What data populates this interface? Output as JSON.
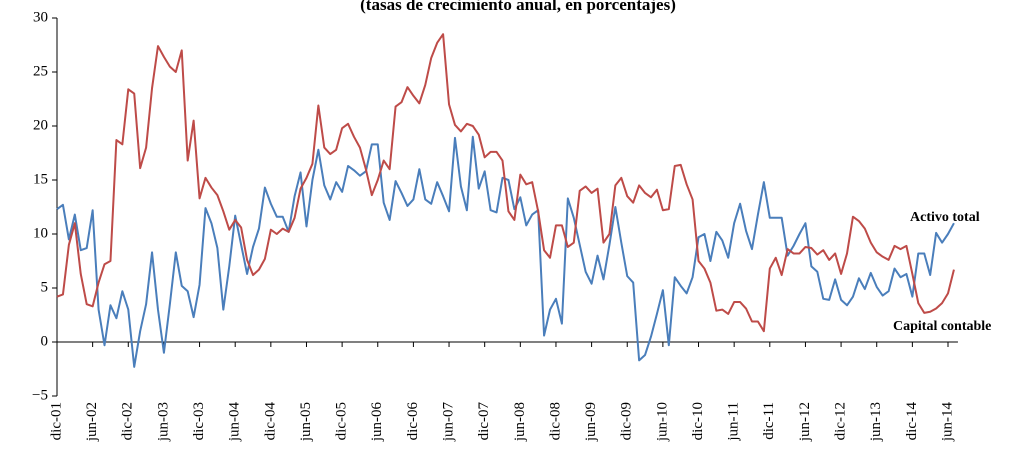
{
  "chart_data": {
    "type": "line",
    "subtitle": "(tasas de crecimiento anual, en porcentajes)",
    "categories": [
      "dic-01",
      null,
      null,
      null,
      null,
      null,
      "jun-02",
      null,
      null,
      null,
      null,
      null,
      "dic-02",
      null,
      null,
      null,
      null,
      null,
      "jun-03",
      null,
      null,
      null,
      null,
      null,
      "dic-03",
      null,
      null,
      null,
      null,
      null,
      "jun-04",
      null,
      null,
      null,
      null,
      null,
      "dic-04",
      null,
      null,
      null,
      null,
      null,
      "jun-05",
      null,
      null,
      null,
      null,
      null,
      "dic-05",
      null,
      null,
      null,
      null,
      null,
      "jun-06",
      null,
      null,
      null,
      null,
      null,
      "dic-06",
      null,
      null,
      null,
      null,
      null,
      "jun-07",
      null,
      null,
      null,
      null,
      null,
      "dic-07",
      null,
      null,
      null,
      null,
      null,
      "jun-08",
      null,
      null,
      null,
      null,
      null,
      "dic-08",
      null,
      null,
      null,
      null,
      null,
      "jun-09",
      null,
      null,
      null,
      null,
      null,
      "dic-09",
      null,
      null,
      null,
      null,
      null,
      "jun-10",
      null,
      null,
      null,
      null,
      null,
      "dic-10",
      null,
      null,
      null,
      null,
      null,
      "jun-11",
      null,
      null,
      null,
      null,
      null,
      "dic-11",
      null,
      null,
      null,
      null,
      null,
      "jun-12",
      null,
      null,
      null,
      null,
      null,
      "dic-12",
      null,
      null,
      null,
      null,
      null,
      "jun-13",
      null,
      null,
      null,
      null,
      null,
      "dic-14",
      null,
      null,
      null,
      null,
      null,
      "jun-14",
      null
    ],
    "series": [
      {
        "name": "Activo total",
        "color": "#4a7ebb",
        "values": [
          12.3,
          12.7,
          9.5,
          11.8,
          8.5,
          8.7,
          12.2,
          3,
          -0.3,
          3.4,
          2.2,
          4.7,
          3,
          -2.3,
          1,
          3.5,
          8.3,
          3,
          -1,
          3.5,
          8.3,
          5.2,
          4.7,
          2.3,
          5.3,
          12.4,
          11,
          8.7,
          3,
          7,
          11.7,
          9,
          6.3,
          8.8,
          10.5,
          14.3,
          12.8,
          11.6,
          11.6,
          10.2,
          13.5,
          15.7,
          10.7,
          15,
          17.8,
          14.5,
          13.2,
          14.8,
          13.9,
          16.3,
          15.9,
          15.4,
          15.8,
          18.3,
          18.3,
          12.9,
          11.3,
          14.9,
          13.8,
          12.6,
          13.2,
          16,
          13.2,
          12.8,
          14.8,
          13.5,
          12.1,
          18.9,
          14.4,
          12.2,
          19,
          14.2,
          15.8,
          12.2,
          12,
          15.2,
          15,
          12.3,
          13.4,
          10.8,
          11.8,
          12.2,
          0.6,
          3,
          4,
          1.7,
          13.3,
          11.5,
          9,
          6.5,
          5.4,
          8,
          5.8,
          9,
          12.5,
          9.2,
          6.1,
          5.5,
          -1.7,
          -1.2,
          0.5,
          2.6,
          4.8,
          -0.3,
          6,
          5.2,
          4.5,
          6,
          9.7,
          10,
          7.5,
          10.2,
          9.4,
          7.8,
          11,
          12.8,
          10.3,
          8.6,
          11.8,
          14.8,
          11.5,
          11.5,
          11.5,
          8,
          8.9,
          10,
          11,
          7,
          6.5,
          4,
          3.9,
          5.8,
          3.9,
          3.4,
          4.2,
          5.9,
          4.9,
          6.4,
          5.1,
          4.3,
          4.7,
          6.8,
          6,
          6.3,
          4.2,
          8.2,
          8.2,
          6.2,
          10.1,
          9.2,
          10,
          11
        ]
      },
      {
        "name": "Capital contable",
        "color": "#be4b48",
        "values": [
          4.2,
          4.4,
          9,
          11,
          6.3,
          3.5,
          3.3,
          5.5,
          7.2,
          7.5,
          18.7,
          18.3,
          23.4,
          23,
          16.1,
          18,
          23.5,
          27.4,
          26.4,
          25.5,
          25,
          27,
          16.8,
          20.5,
          13.3,
          15.2,
          14.3,
          13.6,
          12.1,
          10.4,
          11.3,
          10.6,
          7.6,
          6.2,
          6.7,
          7.7,
          10.4,
          10,
          10.5,
          10.2,
          11.5,
          14.2,
          15.2,
          16.5,
          21.9,
          18,
          17.4,
          17.8,
          19.8,
          20.2,
          19,
          18,
          16,
          13.6,
          15,
          16.8,
          16,
          21.8,
          22.2,
          23.6,
          22.8,
          22.1,
          23.8,
          26.3,
          27.7,
          28.5,
          22,
          20.1,
          19.5,
          20.2,
          20,
          19.2,
          17.1,
          17.6,
          17.6,
          16.8,
          12.1,
          11.3,
          15.5,
          14.6,
          14.8,
          12.1,
          8.5,
          7.8,
          10.8,
          10.8,
          8.8,
          9.2,
          14,
          14.4,
          13.8,
          14.2,
          9.2,
          10,
          14.5,
          15.2,
          13.5,
          12.9,
          14.5,
          13.8,
          13.4,
          14.1,
          12.2,
          12.3,
          16.3,
          16.4,
          14.6,
          13.2,
          7.5,
          6.8,
          5.5,
          2.9,
          3,
          2.6,
          3.7,
          3.7,
          3.1,
          1.9,
          1.9,
          1,
          6.8,
          7.8,
          6.2,
          8.6,
          8.2,
          8.2,
          8.8,
          8.7,
          8.1,
          8.5,
          7.6,
          8.2,
          6.3,
          8.2,
          11.6,
          11.2,
          10.5,
          9.2,
          8.3,
          7.9,
          7.6,
          8.9,
          8.6,
          8.9,
          6.3,
          3.6,
          2.7,
          2.8,
          3.1,
          3.6,
          4.5,
          6.7
        ]
      }
    ],
    "ylim": [
      -5,
      30
    ],
    "yticks": [
      {
        "value": -5,
        "label": "−5"
      },
      0,
      5,
      10,
      15,
      20,
      25,
      30
    ],
    "grid": false
  }
}
